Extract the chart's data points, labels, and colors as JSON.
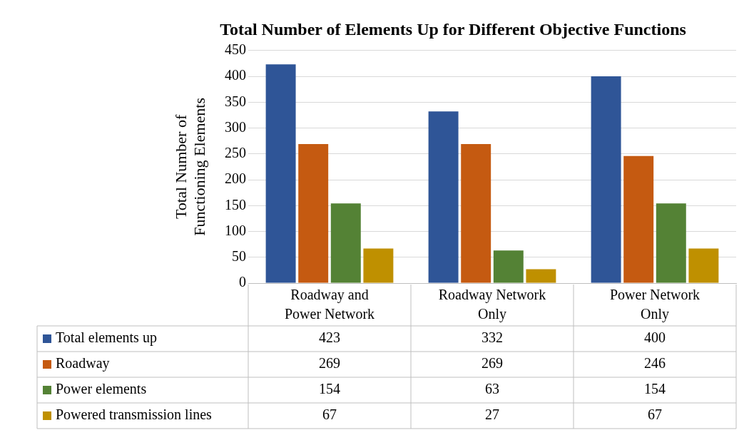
{
  "chart_data": {
    "type": "bar",
    "title": "Total Number of Elements Up for Different Objective Functions",
    "ylabel": "Total Number of Functioning Elements",
    "categories": [
      "Roadway and Power Network",
      "Roadway Network Only",
      "Power Network Only"
    ],
    "series": [
      {
        "name": "Total elements up",
        "color": "#2f5597",
        "values": [
          423,
          332,
          400
        ]
      },
      {
        "name": "Roadway",
        "color": "#c55a11",
        "values": [
          269,
          269,
          246
        ]
      },
      {
        "name": "Power elements",
        "color": "#548235",
        "values": [
          154,
          63,
          154
        ]
      },
      {
        "name": "Powered transmission lines",
        "color": "#bf9000",
        "values": [
          67,
          27,
          67
        ]
      }
    ],
    "ylim": [
      0,
      450
    ],
    "yticks": [
      0,
      50,
      100,
      150,
      200,
      250,
      300,
      350,
      400,
      450
    ],
    "grid": "y",
    "legend": "bottom",
    "data_labels": true
  }
}
